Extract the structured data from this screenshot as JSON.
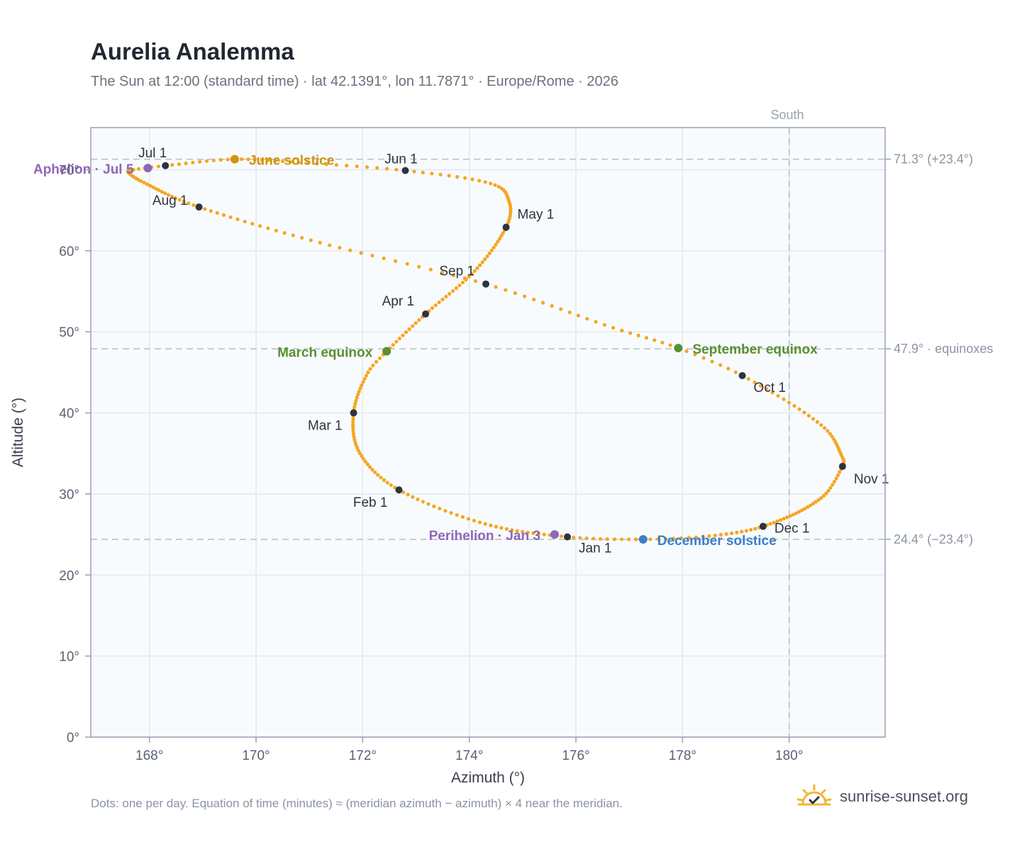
{
  "title": "Aurelia Analemma",
  "subtitle": "The Sun at 12:00 (standard time) · lat 42.1391°, lon 11.7871° · Europe/Rome · 2026",
  "footnote": "Dots: one per day. Equation of time (minutes) ≈ (meridian azimuth − azimuth) × 4 near the meridian.",
  "brand": {
    "name": "sunrise-sunset.org",
    "logo_icon": "sun-check-icon"
  },
  "colors": {
    "path": "#f5a623",
    "month_marker": "#2d3440",
    "june_solstice": "#d4930a",
    "equinox": "#5b8f2f",
    "december_solstice": "#3c7fc6",
    "apsis": "#8f66b8",
    "plot_bg": "#f8fbfd",
    "grid": "#e3e8ee",
    "axis": "#98a2b0",
    "reference_line": "#b4bec8"
  },
  "chart_data": {
    "type": "scatter",
    "title": "Aurelia Analemma",
    "xlabel": "Azimuth (°)",
    "ylabel": "Altitude (°)",
    "xlim": [
      166.9,
      181.8
    ],
    "ylim": [
      0,
      75.2
    ],
    "xticks": [
      168,
      170,
      172,
      174,
      176,
      178,
      180
    ],
    "xtick_labels": [
      "168°",
      "170°",
      "172°",
      "174°",
      "176°",
      "178°",
      "180°"
    ],
    "yticks": [
      0,
      10,
      20,
      30,
      40,
      50,
      60,
      70
    ],
    "ytick_labels": [
      "0°",
      "10°",
      "20°",
      "30°",
      "40°",
      "50°",
      "60°",
      "70°"
    ],
    "grid": true,
    "meridian": {
      "azimuth": 180,
      "label": "South"
    },
    "reference_lines": [
      {
        "altitude": 71.3,
        "label": "71.3° (+23.4°)"
      },
      {
        "altitude": 47.9,
        "label": "47.9° · equinoxes"
      },
      {
        "altitude": 24.4,
        "label": "24.4° (−23.4°)"
      }
    ],
    "series": [
      {
        "kind": "daily_path",
        "points_per": "day",
        "count": 365,
        "anchors": [
          [
            0,
            175.84,
            24.7
          ],
          [
            15,
            174.3,
            26.3
          ],
          [
            31,
            172.68,
            30.5
          ],
          [
            45,
            171.95,
            35.0
          ],
          [
            59,
            171.83,
            40.0
          ],
          [
            72,
            172.1,
            45.0
          ],
          [
            78,
            172.45,
            47.6
          ],
          [
            90,
            173.18,
            52.2
          ],
          [
            105,
            174.1,
            57.5
          ],
          [
            120,
            174.69,
            62.9
          ],
          [
            130,
            174.75,
            66.0
          ],
          [
            140,
            174.4,
            68.3
          ],
          [
            151,
            172.8,
            69.9
          ],
          [
            162,
            170.8,
            70.9
          ],
          [
            171,
            169.6,
            71.3
          ],
          [
            181,
            168.3,
            70.5
          ],
          [
            186,
            167.7,
            70.0
          ],
          [
            189,
            167.6,
            69.7
          ],
          [
            197,
            167.9,
            68.4
          ],
          [
            212,
            168.93,
            65.4
          ],
          [
            228,
            171.2,
            61.0
          ],
          [
            243,
            174.31,
            55.9
          ],
          [
            257,
            176.7,
            50.5
          ],
          [
            265,
            177.92,
            48.0
          ],
          [
            273,
            179.12,
            44.6
          ],
          [
            288,
            180.6,
            38.5
          ],
          [
            300,
            181.0,
            34.5
          ],
          [
            304,
            181.0,
            33.4
          ],
          [
            315,
            180.6,
            29.5
          ],
          [
            334,
            179.51,
            26.0
          ],
          [
            345,
            178.5,
            24.8
          ],
          [
            354,
            177.26,
            24.4
          ],
          [
            365,
            175.84,
            24.7
          ]
        ]
      }
    ],
    "month_markers": [
      {
        "label": "Jan 1",
        "azimuth": 175.84,
        "altitude": 24.7
      },
      {
        "label": "Feb 1",
        "azimuth": 172.68,
        "altitude": 30.5
      },
      {
        "label": "Mar 1",
        "azimuth": 171.83,
        "altitude": 40.0
      },
      {
        "label": "Apr 1",
        "azimuth": 173.18,
        "altitude": 52.2
      },
      {
        "label": "May 1",
        "azimuth": 174.69,
        "altitude": 62.9
      },
      {
        "label": "Jun 1",
        "azimuth": 172.8,
        "altitude": 69.9
      },
      {
        "label": "Jul 1",
        "azimuth": 168.3,
        "altitude": 70.5
      },
      {
        "label": "Aug 1",
        "azimuth": 168.93,
        "altitude": 65.4
      },
      {
        "label": "Sep 1",
        "azimuth": 174.31,
        "altitude": 55.9
      },
      {
        "label": "Oct 1",
        "azimuth": 179.12,
        "altitude": 44.6
      },
      {
        "label": "Nov 1",
        "azimuth": 181.0,
        "altitude": 33.4
      },
      {
        "label": "Dec 1",
        "azimuth": 179.51,
        "altitude": 26.0
      }
    ],
    "events": [
      {
        "label": "June solstice",
        "azimuth": 169.6,
        "altitude": 71.3,
        "color": "#d4930a"
      },
      {
        "label": "March equinox",
        "azimuth": 172.45,
        "altitude": 47.6,
        "color": "#5b8f2f"
      },
      {
        "label": "September equinox",
        "azimuth": 177.92,
        "altitude": 48.0,
        "color": "#5b8f2f"
      },
      {
        "label": "December solstice",
        "azimuth": 177.26,
        "altitude": 24.4,
        "color": "#3c7fc6"
      },
      {
        "label": "Aphelion · Jul 5",
        "azimuth": 167.97,
        "altitude": 70.2,
        "color": "#8f66b8"
      },
      {
        "label": "Perihelion · Jan 3",
        "azimuth": 175.6,
        "altitude": 25.0,
        "color": "#8f66b8"
      }
    ]
  }
}
